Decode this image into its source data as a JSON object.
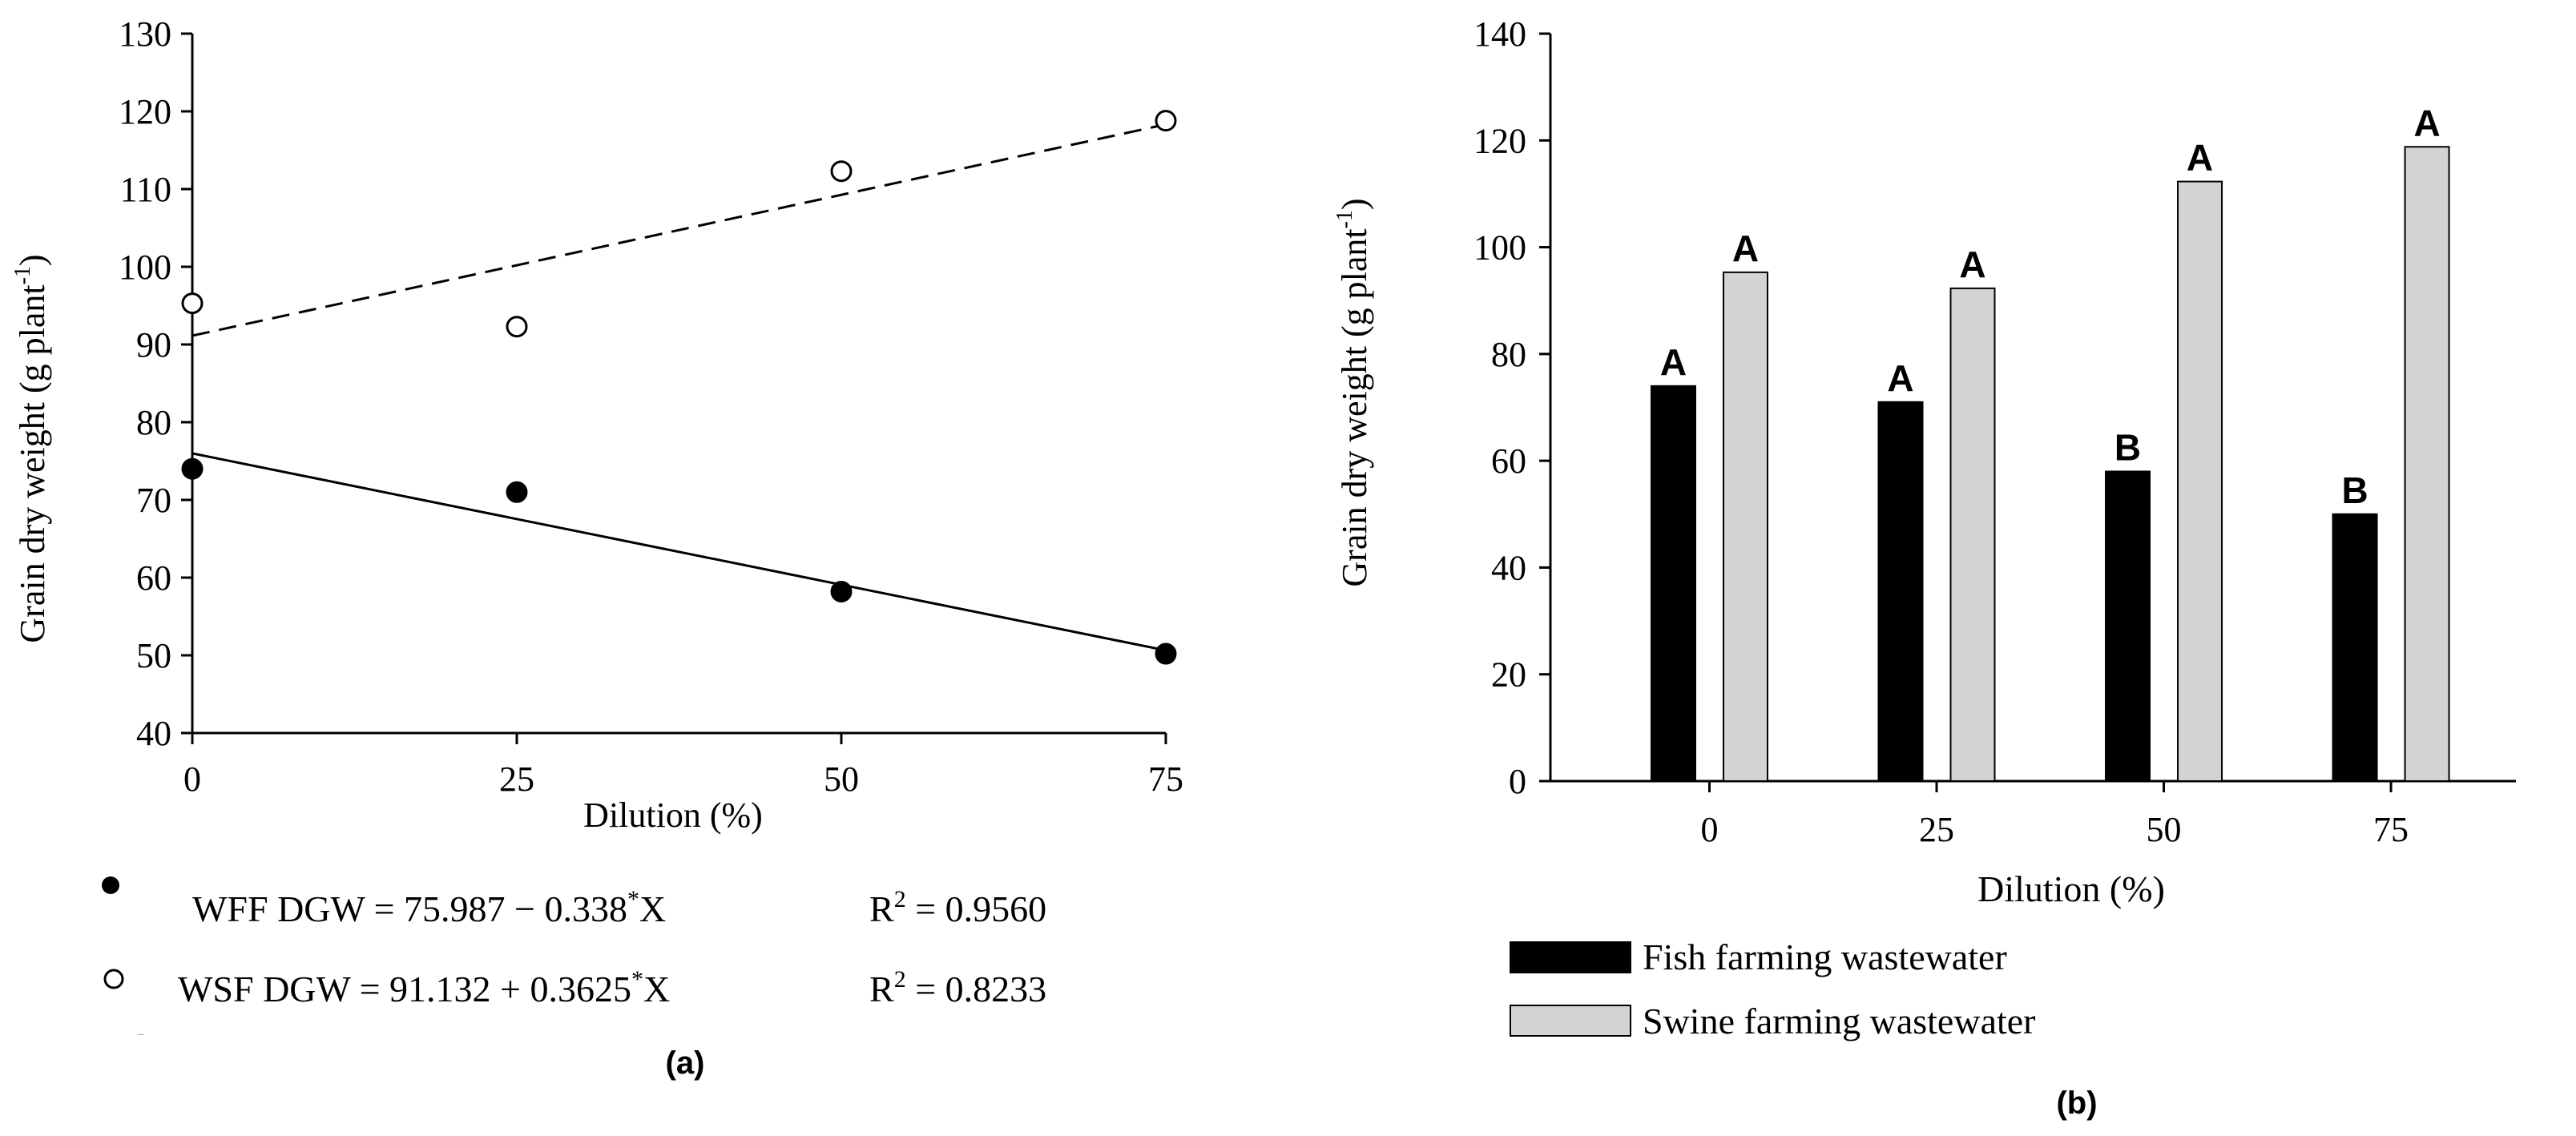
{
  "chart_data": [
    {
      "panel": "a",
      "type": "scatter",
      "caption": "(a)",
      "xlabel": "Dilution (%)",
      "ylabel_main": "Grain dry weight (g plant",
      "ylabel_sup": "-1",
      "ylabel_close": ")",
      "xlim": [
        0,
        75
      ],
      "ylim": [
        40,
        130
      ],
      "xticks": [
        0,
        25,
        50,
        75
      ],
      "yticks": [
        40,
        50,
        60,
        70,
        80,
        90,
        100,
        110,
        120,
        130
      ],
      "series": [
        {
          "name": "WFF",
          "marker": "filled-circle",
          "line": "solid",
          "x": [
            0,
            25,
            50,
            75
          ],
          "y": [
            74,
            71,
            58.2,
            50.2
          ],
          "fit": {
            "intercept": 75.987,
            "slope": -0.338
          },
          "equation_main": "WFF DGW = 75.987 − 0.338",
          "equation_sup": "*",
          "equation_tail": "X",
          "r2_label": "R",
          "r2_sup": "2",
          "r2_value": " = 0.9560"
        },
        {
          "name": "WSF",
          "marker": "open-circle",
          "line": "dashed",
          "x": [
            0,
            25,
            50,
            75
          ],
          "y": [
            95.3,
            92.3,
            112.3,
            118.8
          ],
          "fit": {
            "intercept": 91.132,
            "slope": 0.3625
          },
          "equation_main": "WSF DGW = 91.132 + 0.3625",
          "equation_sup": "*",
          "equation_tail": "X",
          "r2_label": "R",
          "r2_sup": "2",
          "r2_value": " = 0.8233"
        }
      ]
    },
    {
      "panel": "b",
      "type": "bar",
      "caption": "(b)",
      "xlabel": "Dilution (%)",
      "ylabel_main": "Grain dry weight (g plant",
      "ylabel_sup": "-1",
      "ylabel_close": ")",
      "categories": [
        "0",
        "25",
        "50",
        "75"
      ],
      "ylim": [
        0,
        140
      ],
      "yticks": [
        0,
        20,
        40,
        60,
        80,
        100,
        120,
        140
      ],
      "series": [
        {
          "name": "Fish farming wastewater",
          "color": "#000000",
          "values": [
            74,
            71,
            58,
            50
          ],
          "letters": [
            "A",
            "A",
            "B",
            "B"
          ]
        },
        {
          "name": "Swine farming wastewater",
          "color": "#d3d3d3",
          "values": [
            95.3,
            92.3,
            112.3,
            118.8
          ],
          "letters": [
            "A",
            "A",
            "A",
            "A"
          ]
        }
      ]
    }
  ],
  "stray_mark": "..."
}
